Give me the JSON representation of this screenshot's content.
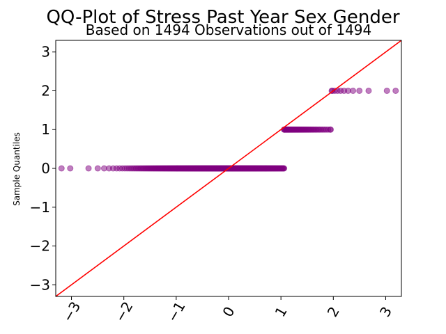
{
  "chart_data": {
    "type": "scatter",
    "title": "QQ-Plot of Stress Past Year Sex Gender",
    "subtitle": "Based on 1494 Observations out of 1494",
    "xlabel": "",
    "ylabel": "Sample Quantiles",
    "xlim": [
      -3.3,
      3.3
    ],
    "ylim": [
      -3.3,
      3.3
    ],
    "x_ticks": [
      -3,
      -2,
      -1,
      0,
      1,
      2,
      3
    ],
    "y_ticks": [
      -3,
      -2,
      -1,
      0,
      1,
      2,
      3
    ],
    "x_tick_labels": [
      "−3",
      "−2",
      "−1",
      "0",
      "1",
      "2",
      "3"
    ],
    "y_tick_labels": [
      "−3",
      "−2",
      "−1",
      "0",
      "1",
      "2",
      "3"
    ],
    "reference_line": {
      "slope": 1,
      "intercept": 0,
      "color": "#ff0000"
    },
    "point_color": "#800080",
    "grid": false,
    "series": [
      {
        "points": [
          {
            "x_range": [
              -3.19,
              1.06
            ],
            "y": 0
          },
          {
            "x_range": [
              1.06,
              1.95
            ],
            "y": 1
          },
          {
            "x_range": [
              1.97,
              3.19
            ],
            "y": 2
          }
        ]
      }
    ]
  }
}
